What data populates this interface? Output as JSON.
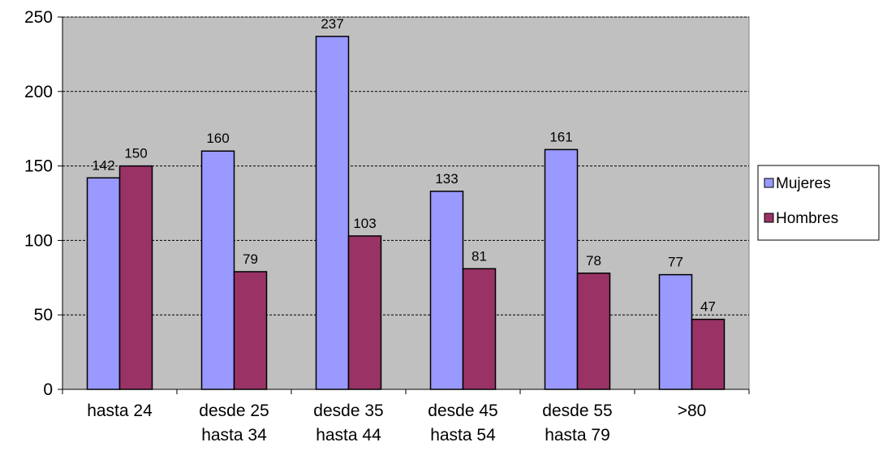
{
  "chart_data": {
    "type": "bar",
    "categories": [
      [
        "hasta 24"
      ],
      [
        "desde 25",
        "hasta 34"
      ],
      [
        "desde 35",
        "hasta 44"
      ],
      [
        "desde 45",
        "hasta 54"
      ],
      [
        "desde 55",
        "hasta 79"
      ],
      [
        ">80"
      ]
    ],
    "series": [
      {
        "name": "Mujeres",
        "values": [
          142,
          160,
          237,
          133,
          161,
          77
        ],
        "color": "#9999ff"
      },
      {
        "name": "Hombres",
        "values": [
          150,
          79,
          103,
          81,
          78,
          47
        ],
        "color": "#993366"
      }
    ],
    "ylim": [
      0,
      250
    ],
    "yticks": [
      0,
      50,
      100,
      150,
      200,
      250
    ],
    "grid": true,
    "plot_background": "#c0c0c0",
    "legend_position": "right"
  }
}
